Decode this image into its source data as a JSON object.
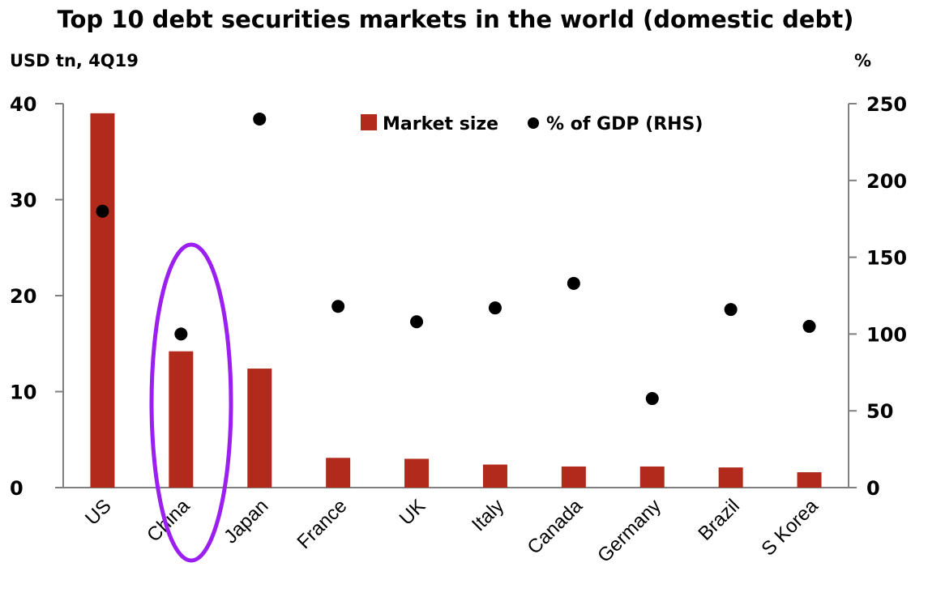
{
  "chart_data": {
    "type": "bar",
    "title": "Top 10 debt securities markets in the world (domestic debt)",
    "ylabel_left": "USD tn, 4Q19",
    "ylabel_right": "%",
    "categories": [
      "US",
      "China",
      "Japan",
      "France",
      "UK",
      "Italy",
      "Canada",
      "Germany",
      "Brazil",
      "S Korea"
    ],
    "series": [
      {
        "name": "Market size",
        "type": "bar",
        "axis": "left",
        "color": "#b22a1c",
        "values": [
          39.0,
          14.2,
          12.4,
          3.1,
          3.0,
          2.4,
          2.2,
          2.2,
          2.1,
          1.6
        ]
      },
      {
        "name": "% of GDP (RHS)",
        "type": "scatter",
        "axis": "right",
        "color": "#000000",
        "values": [
          180,
          100,
          240,
          118,
          108,
          117,
          133,
          58,
          116,
          105
        ]
      }
    ],
    "ylim_left": [
      0,
      40
    ],
    "yticks_left": [
      0,
      10,
      20,
      30,
      40
    ],
    "ylim_right": [
      0,
      250
    ],
    "yticks_right": [
      0,
      50,
      100,
      150,
      200,
      250
    ],
    "grid": false,
    "legend_position": "top-center",
    "annotation": {
      "type": "ellipse-highlight",
      "target": "China",
      "color": "#9b1ff0"
    }
  }
}
